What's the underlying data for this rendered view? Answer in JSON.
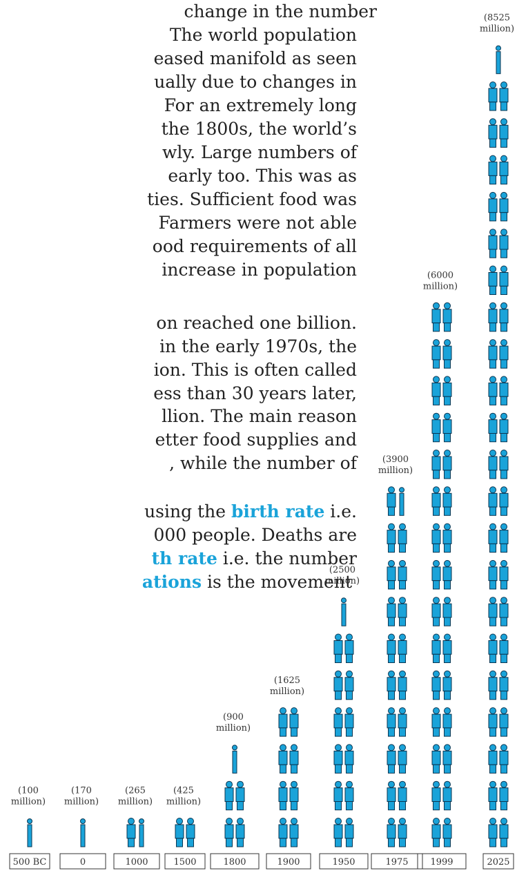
{
  "text": {
    "lines": [
      "change in the number",
      "The world population",
      "eased manifold as seen",
      "ually due to changes in",
      "For an extremely long",
      "the 1800s, the world’s",
      "wly. Large numbers of",
      "early too. This was as",
      "ties. Sufficient food was",
      "Farmers were not able",
      "ood requirements of all",
      "increase in population",
      "on reached one billion.",
      "in the early 1970s, the",
      "ion. This is often called",
      "ess than 30 years later,",
      "llion. The main reason",
      "etter food supplies and",
      ", while the number of",
      [
        {
          "text": "using the "
        },
        {
          "text": "birth rate",
          "bold": true
        },
        {
          "text": " i.e."
        }
      ],
      "000 people. Deaths are",
      [
        {
          "text": "th rate",
          "bold": true
        },
        {
          "text": " i.e. the number"
        }
      ],
      [
        {
          "text": "ations",
          "bold": true
        },
        {
          "text": " is the movement"
        }
      ]
    ]
  },
  "chart_data": {
    "type": "pictograph",
    "categories": [
      "500 BC",
      "0",
      "1000",
      "1500",
      "1800",
      "1900",
      "1950",
      "1975",
      "1999",
      "2025"
    ],
    "values": [
      100,
      170,
      265,
      425,
      900,
      1625,
      2500,
      3900,
      6000,
      8525
    ],
    "value_labels": [
      "(100 million)",
      "(170 million)",
      "(265 million)",
      "(425 million)",
      "(900 million)",
      "(1625 million)",
      "(2500 million)",
      "(3900 million)",
      "(6000 million)",
      "(8525 million)"
    ],
    "color": "#1aa3d9"
  }
}
